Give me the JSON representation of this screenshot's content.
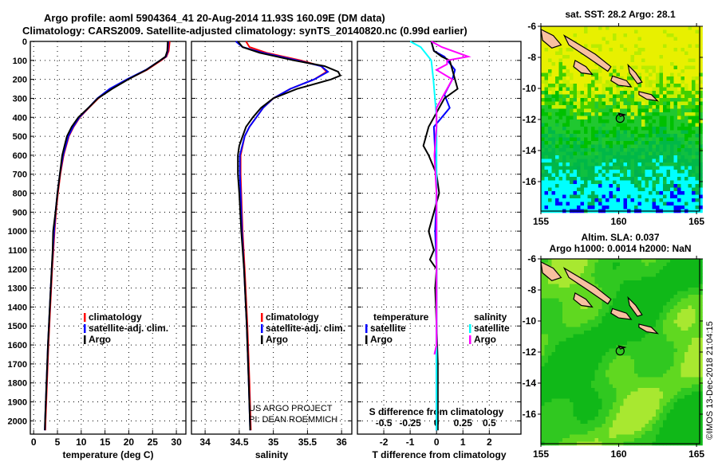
{
  "title_line1": "Argo profile: aoml 5904364_41 20-Aug-2014 11.93S 160.09E (DM data)",
  "title_line2": "Climatology: CARS2009. Satellite-adjusted climatology: synTS_20140820.nc (0.99d earlier)",
  "credit": "©IMOS 13-Dec-2018 21:04:15",
  "project_line1": "US ARGO PROJECT",
  "project_line2": "PI: DEAN ROEMMICH",
  "colors": {
    "climatology": "#ff0000",
    "satellite": "#0000ff",
    "argo": "#000000",
    "s_satellite": "#00ffff",
    "s_argo": "#ff00ff"
  },
  "chart_data": [
    {
      "type": "line",
      "name": "temperature-profile",
      "xlabel": "temperature (deg C)",
      "xlim": [
        -0.7,
        32
      ],
      "xticks": [
        0,
        5,
        10,
        15,
        20,
        25,
        30
      ],
      "ylim": [
        0,
        2070
      ],
      "yticks": [
        0,
        100,
        200,
        300,
        400,
        500,
        600,
        700,
        800,
        900,
        1000,
        1100,
        1200,
        1300,
        1400,
        1500,
        1600,
        1700,
        1800,
        1900,
        2000
      ],
      "grid": true,
      "legend": [
        "climatology",
        "satellite-adj. clim.",
        "Argo"
      ],
      "legend_position": "bottom-right",
      "series": [
        {
          "name": "climatology",
          "color": "#ff0000",
          "depth": [
            0,
            50,
            80,
            100,
            150,
            200,
            250,
            300,
            350,
            400,
            450,
            500,
            600,
            700,
            800,
            900,
            1000,
            1200,
            1400,
            1600,
            1800,
            2000,
            2050
          ],
          "value": [
            28.6,
            28.4,
            27.9,
            26.8,
            23.8,
            19.8,
            16.2,
            13.6,
            11.6,
            9.7,
            8.4,
            7.4,
            6.3,
            5.6,
            5.1,
            4.7,
            4.4,
            3.9,
            3.5,
            3.1,
            2.8,
            2.5,
            2.45
          ]
        },
        {
          "name": "satellite-adj. clim.",
          "color": "#0000ff",
          "depth": [
            0,
            50,
            80,
            100,
            150,
            200,
            250,
            300,
            350,
            400,
            450,
            500,
            600,
            700,
            800,
            900,
            1000,
            1200,
            1400,
            1600,
            1800,
            2000,
            2050
          ],
          "value": [
            28.3,
            28.2,
            27.8,
            26.6,
            23.6,
            19.6,
            16.0,
            13.4,
            11.5,
            9.6,
            8.3,
            7.3,
            6.2,
            5.5,
            5.0,
            4.6,
            4.3,
            3.8,
            3.4,
            3.0,
            2.7,
            2.4,
            2.35
          ]
        },
        {
          "name": "Argo",
          "color": "#000000",
          "depth": [
            0,
            50,
            80,
            100,
            150,
            200,
            250,
            300,
            350,
            400,
            450,
            500,
            550,
            600,
            700,
            800,
            900,
            1000,
            1100,
            1200,
            1400,
            1600,
            1800,
            2000,
            2050
          ],
          "value": [
            28.2,
            28.1,
            27.7,
            26.6,
            23.7,
            19.9,
            16.5,
            13.5,
            11.5,
            9.4,
            8.0,
            7.0,
            6.5,
            6.0,
            5.5,
            5.0,
            4.6,
            4.1,
            4.0,
            3.8,
            3.4,
            3.0,
            2.7,
            2.4,
            2.35
          ]
        }
      ]
    },
    {
      "type": "line",
      "name": "salinity-profile",
      "xlabel": "salinity",
      "xlim": [
        33.8,
        36.15
      ],
      "xticks": [
        34,
        34.5,
        35,
        35.5,
        36
      ],
      "ylim": [
        0,
        2070
      ],
      "grid": true,
      "legend": [
        "climatology",
        "satellite-adj. clim.",
        "Argo"
      ],
      "legend_position": "bottom-right",
      "series": [
        {
          "name": "climatology",
          "color": "#ff0000",
          "depth": [
            0,
            30,
            60,
            100,
            130,
            160,
            200,
            250,
            300,
            350,
            400,
            450,
            500,
            600,
            700,
            800,
            1000,
            1200,
            1500,
            1800,
            2050
          ],
          "value": [
            34.6,
            34.65,
            34.9,
            35.4,
            35.7,
            35.78,
            35.6,
            35.25,
            35.0,
            34.85,
            34.75,
            34.65,
            34.58,
            34.52,
            34.52,
            34.53,
            34.55,
            34.58,
            34.62,
            34.65,
            34.67
          ]
        },
        {
          "name": "satellite-adj. clim.",
          "color": "#0000ff",
          "depth": [
            0,
            30,
            60,
            100,
            130,
            160,
            200,
            250,
            300,
            350,
            400,
            450,
            500,
            600,
            700,
            800,
            1000,
            1200,
            1500,
            1800,
            2050
          ],
          "value": [
            34.45,
            34.55,
            34.85,
            35.35,
            35.7,
            35.8,
            35.6,
            35.25,
            35.0,
            34.85,
            34.75,
            34.65,
            34.58,
            34.51,
            34.51,
            34.52,
            34.54,
            34.57,
            34.61,
            34.64,
            34.66
          ]
        },
        {
          "name": "Argo",
          "color": "#000000",
          "depth": [
            0,
            30,
            60,
            100,
            130,
            160,
            180,
            200,
            250,
            300,
            350,
            400,
            450,
            500,
            550,
            600,
            700,
            800,
            1000,
            1200,
            1500,
            1800,
            2050
          ],
          "value": [
            34.48,
            34.55,
            34.8,
            35.3,
            35.75,
            35.95,
            35.98,
            35.85,
            35.35,
            35.0,
            34.82,
            34.7,
            34.6,
            34.55,
            34.5,
            34.48,
            34.48,
            34.5,
            34.53,
            34.57,
            34.61,
            34.64,
            34.66
          ]
        }
      ]
    },
    {
      "type": "line",
      "name": "difference-profile",
      "xlabel": "T difference from climatology",
      "xlim": [
        -3,
        3.2
      ],
      "xticks": [
        -2,
        -1,
        0,
        1,
        2
      ],
      "x2label": "S difference from climatology",
      "x2ticks": [
        -0.5,
        -0.25,
        0,
        0.25,
        0.5
      ],
      "x2tick_labels": [
        "-0.5",
        "-0.25",
        "0",
        "0.25",
        "0.5"
      ],
      "legend_temperature_title": "temperature",
      "legend_salinity_title": "salinity",
      "legend": [
        "satellite",
        "Argo",
        "satellite",
        "Argo"
      ],
      "legend_position": "bottom",
      "series": [
        {
          "name": "T satellite",
          "axis": "T",
          "color": "#0000ff",
          "depth": [
            0,
            50,
            80,
            150,
            200,
            280,
            350,
            400,
            450,
            600,
            800,
            1000,
            1200,
            2050
          ],
          "value": [
            -0.2,
            -0.1,
            0.3,
            0.7,
            0.6,
            0.3,
            0.5,
            0.2,
            -0.1,
            -0.05,
            0,
            -0.05,
            0,
            0
          ]
        },
        {
          "name": "T Argo",
          "axis": "T",
          "color": "#000000",
          "depth": [
            0,
            50,
            80,
            100,
            150,
            200,
            250,
            300,
            350,
            400,
            450,
            500,
            550,
            600,
            700,
            800,
            900,
            1000,
            1050,
            1100,
            1150,
            1200,
            1300,
            1500,
            1700,
            2050
          ],
          "value": [
            -0.2,
            -0.1,
            0.2,
            0.5,
            0.6,
            0.7,
            0.8,
            0.3,
            0.1,
            -0.1,
            -0.3,
            -0.4,
            -0.5,
            -0.3,
            0,
            0.1,
            -0.1,
            -0.3,
            -0.2,
            -0.1,
            -0.25,
            0,
            -0.05,
            0,
            0.05,
            0.05
          ]
        },
        {
          "name": "S satellite",
          "axis": "S",
          "color": "#00ffff",
          "depth": [
            0,
            30,
            100,
            200,
            400,
            800,
            2050
          ],
          "value": [
            -0.25,
            -0.15,
            -0.05,
            -0.03,
            0,
            0,
            0
          ]
        },
        {
          "name": "S Argo",
          "axis": "S",
          "color": "#ff00ff",
          "depth": [
            0,
            30,
            80,
            100,
            120,
            150,
            200,
            250,
            300,
            350,
            450,
            600,
            800,
            1000,
            1600,
            1650
          ],
          "value": [
            -0.05,
            0.05,
            0.3,
            0.1,
            0.1,
            0,
            0.15,
            0.1,
            0.05,
            0,
            0,
            -0.02,
            0,
            0,
            0,
            -0.02
          ]
        }
      ]
    },
    {
      "type": "heatmap",
      "name": "sst-map",
      "title": "sat. SST: 28.2 Argo: 28.1",
      "xlim": [
        155,
        165.2
      ],
      "ylim": [
        -17.9,
        -6
      ],
      "xticks": [
        155,
        160,
        165
      ],
      "yticks": [
        -6,
        -8,
        -10,
        -12,
        -14,
        -16
      ],
      "argo_position": {
        "lon": 160.09,
        "lat": -11.93
      }
    },
    {
      "type": "heatmap",
      "name": "sla-map",
      "title_line1": "Altim. SLA: 0.037",
      "title_line2": "Argo h1000: 0.0014 h2000: NaN",
      "xlim": [
        155,
        165.2
      ],
      "ylim": [
        -17.9,
        -6
      ],
      "xticks": [
        155,
        160,
        165
      ],
      "yticks": [
        -6,
        -8,
        -10,
        -12,
        -14,
        -16
      ],
      "argo_position": {
        "lon": 160.09,
        "lat": -11.93
      }
    }
  ]
}
